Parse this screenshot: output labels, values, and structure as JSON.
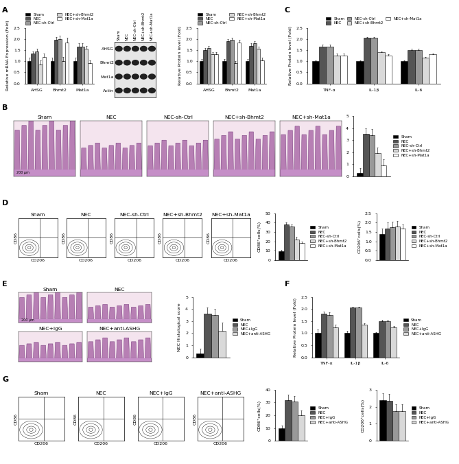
{
  "panel_letters": [
    "A",
    "B",
    "C",
    "D",
    "E",
    "F",
    "G"
  ],
  "chart_data": [
    {
      "type": "bar",
      "y_label": "Relative mRNA Expression (Fold)",
      "categories": [
        "AHSG",
        "Bhmt2",
        "Mat1a"
      ],
      "series": [
        {
          "name": "Sham",
          "color": "#000000",
          "values": [
            1.0,
            1.0,
            1.0
          ],
          "errors": [
            0.15,
            0.15,
            0.15
          ]
        },
        {
          "name": "NEC",
          "color": "#555555",
          "values": [
            1.35,
            1.95,
            1.65
          ],
          "errors": [
            0.1,
            0.15,
            0.15
          ]
        },
        {
          "name": "NEC-sh-Ctrl",
          "color": "#999999",
          "values": [
            1.45,
            2.0,
            1.65
          ],
          "errors": [
            0.1,
            0.15,
            0.15
          ]
        },
        {
          "name": "NEC+sh-Bhmt2",
          "color": "#d9d9d9",
          "values": [
            0.85,
            1.0,
            1.55
          ],
          "errors": [
            0.2,
            0.2,
            0.15
          ]
        },
        {
          "name": "NEC+sh-Mat1a",
          "color": "#ffffff",
          "values": [
            1.2,
            1.85,
            0.9
          ],
          "errors": [
            0.15,
            0.2,
            0.15
          ]
        }
      ],
      "ylim": [
        0,
        2.5
      ],
      "yticks": [
        {
          "value": 0,
          "label": "0.0"
        },
        0.5,
        {
          "value": 1,
          "label": "1.0"
        },
        1.5,
        {
          "value": 2,
          "label": "2.0"
        },
        2.5
      ],
      "legend": "above"
    },
    {
      "type": "bar",
      "y_label": "Relative Protein level (Fold)",
      "categories": [
        "AHSG",
        "Bhmt2",
        "Mat1a"
      ],
      "series": [
        {
          "name": "Sham",
          "color": "#000000",
          "values": [
            1.0,
            1.0,
            1.0
          ],
          "errors": [
            0.1,
            0.1,
            0.1
          ]
        },
        {
          "name": "NEC",
          "color": "#555555",
          "values": [
            1.5,
            1.9,
            1.7
          ],
          "errors": [
            0.1,
            0.1,
            0.1
          ]
        },
        {
          "name": "NEC-sh-Ctrl",
          "color": "#999999",
          "values": [
            1.6,
            1.95,
            1.8
          ],
          "errors": [
            0.1,
            0.1,
            0.1
          ]
        },
        {
          "name": "NEC+sh-Bhmt2",
          "color": "#d9d9d9",
          "values": [
            1.3,
            0.9,
            1.55
          ],
          "errors": [
            0.1,
            0.1,
            0.1
          ]
        },
        {
          "name": "NEC+sh-Mat1a",
          "color": "#ffffff",
          "values": [
            1.3,
            1.85,
            1.05
          ],
          "errors": [
            0.1,
            0.1,
            0.1
          ]
        }
      ],
      "ylim": [
        0,
        2.5
      ],
      "yticks": [
        {
          "value": 0,
          "label": "0.0"
        },
        0.5,
        {
          "value": 1,
          "label": "1.0"
        },
        1.5,
        {
          "value": 2,
          "label": "2.0"
        },
        2.5
      ],
      "legend": "above"
    },
    {
      "type": "bar",
      "y_label": "Relative Protein level (Fold)",
      "categories": [
        "TNF-α",
        "IL-1β",
        "IL-6"
      ],
      "series": [
        {
          "name": "Sham",
          "color": "#000000",
          "values": [
            1.0,
            1.0,
            1.0
          ],
          "errors": [
            0.05,
            0.05,
            0.05
          ]
        },
        {
          "name": "NEC",
          "color": "#555555",
          "values": [
            1.65,
            2.05,
            1.5
          ],
          "errors": [
            0.1,
            0.05,
            0.05
          ]
        },
        {
          "name": "NEC-sh-Ctrl",
          "color": "#999999",
          "values": [
            1.65,
            2.05,
            1.5
          ],
          "errors": [
            0.1,
            0.05,
            0.05
          ]
        },
        {
          "name": "NEC+sh-Bhmt2",
          "color": "#d9d9d9",
          "values": [
            1.25,
            1.4,
            1.15
          ],
          "errors": [
            0.1,
            0.05,
            0.05
          ]
        },
        {
          "name": "NEC+sh-Mat1a",
          "color": "#ffffff",
          "values": [
            1.25,
            1.25,
            1.3
          ],
          "errors": [
            0.1,
            0.05,
            0.05
          ]
        }
      ],
      "ylim": [
        0,
        2.5
      ],
      "yticks": [
        {
          "value": 0,
          "label": "0.0"
        },
        0.5,
        {
          "value": 1,
          "label": "1.0"
        },
        1.5,
        {
          "value": 2,
          "label": "2.0"
        },
        2.5
      ],
      "legend": "above"
    },
    {
      "type": "bar",
      "y_label": "NEC Histological score",
      "categories": [
        null
      ],
      "series": [
        {
          "name": "Sham",
          "color": "#000000",
          "values": [
            0.3
          ],
          "errors": [
            0.4
          ]
        },
        {
          "name": "NEC",
          "color": "#555555",
          "values": [
            3.5
          ],
          "errors": [
            0.5
          ]
        },
        {
          "name": "NEC-sh-Ctrl",
          "color": "#999999",
          "values": [
            3.4
          ],
          "errors": [
            0.5
          ]
        },
        {
          "name": "NEC+sh-Bhmt2",
          "color": "#d9d9d9",
          "values": [
            1.9
          ],
          "errors": [
            0.5
          ]
        },
        {
          "name": "NEC+sh-Mat1a",
          "color": "#ffffff",
          "values": [
            0.9
          ],
          "errors": [
            0.5
          ]
        }
      ],
      "ylim": [
        0,
        5
      ],
      "yticks": [
        0,
        1,
        2,
        3,
        4,
        5
      ],
      "legend": "right"
    },
    {
      "type": "bar",
      "y_label": "CD86⁺cells(%)",
      "categories": [
        null
      ],
      "series": [
        {
          "name": "Sham",
          "color": "#000000",
          "values": [
            9
          ],
          "errors": [
            2
          ]
        },
        {
          "name": "NEC",
          "color": "#555555",
          "values": [
            38
          ],
          "errors": [
            2
          ]
        },
        {
          "name": "NEC-sh-Ctrl",
          "color": "#999999",
          "values": [
            36
          ],
          "errors": [
            2
          ]
        },
        {
          "name": "NEC+sh-Bhmt2",
          "color": "#d9d9d9",
          "values": [
            22
          ],
          "errors": [
            3
          ]
        },
        {
          "name": "NEC+sh-Mat1a",
          "color": "#ffffff",
          "values": [
            18
          ],
          "errors": [
            2
          ]
        }
      ],
      "ylim": [
        0,
        50
      ],
      "yticks": [
        0,
        10,
        20,
        30,
        40,
        50
      ],
      "legend": "right"
    },
    {
      "type": "bar",
      "y_label": "CD206⁺cells(%)",
      "categories": [
        null
      ],
      "series": [
        {
          "name": "Sham",
          "color": "#000000",
          "values": [
            1.4
          ],
          "errors": [
            0.3
          ]
        },
        {
          "name": "NEC",
          "color": "#555555",
          "values": [
            1.7
          ],
          "errors": [
            0.3
          ]
        },
        {
          "name": "NEC-sh-Ctrl",
          "color": "#999999",
          "values": [
            1.75
          ],
          "errors": [
            0.3
          ]
        },
        {
          "name": "NEC+sh-Bhmt2",
          "color": "#d9d9d9",
          "values": [
            1.8
          ],
          "errors": [
            0.3
          ]
        },
        {
          "name": "NEC+sh-Mat1a",
          "color": "#ffffff",
          "values": [
            1.7
          ],
          "errors": [
            0.2
          ]
        }
      ],
      "ylim": [
        0,
        2.5
      ],
      "yticks": [
        {
          "value": 0,
          "label": "0.0"
        },
        0.5,
        {
          "value": 1,
          "label": "1.0"
        },
        1.5,
        {
          "value": 2,
          "label": "2.0"
        },
        2.5
      ],
      "legend": "right"
    },
    {
      "type": "bar",
      "y_label": "NEC Histological score",
      "categories": [
        null
      ],
      "series": [
        {
          "name": "Sham",
          "color": "#000000",
          "values": [
            0.3
          ],
          "errors": [
            0.4
          ]
        },
        {
          "name": "NEC",
          "color": "#555555",
          "values": [
            3.6
          ],
          "errors": [
            0.5
          ]
        },
        {
          "name": "NEC+IgG",
          "color": "#999999",
          "values": [
            3.5
          ],
          "errors": [
            0.5
          ]
        },
        {
          "name": "NEC+anti-ASHG",
          "color": "#d9d9d9",
          "values": [
            2.2
          ],
          "errors": [
            0.7
          ]
        }
      ],
      "ylim": [
        0,
        5
      ],
      "yticks": [
        0,
        1,
        2,
        3,
        4,
        5
      ],
      "legend": "right"
    },
    {
      "type": "bar",
      "y_label": "Relative Protein level (Fold)",
      "categories": [
        "TNF-α",
        "IL-1β",
        "IL-6"
      ],
      "series": [
        {
          "name": "Sham",
          "color": "#000000",
          "values": [
            1.0,
            1.0,
            1.0
          ],
          "errors": [
            0.15,
            0.1,
            0.05
          ]
        },
        {
          "name": "NEC",
          "color": "#555555",
          "values": [
            1.8,
            2.05,
            1.5
          ],
          "errors": [
            0.1,
            0.05,
            0.05
          ]
        },
        {
          "name": "NEC+IgG",
          "color": "#999999",
          "values": [
            1.75,
            2.05,
            1.5
          ],
          "errors": [
            0.1,
            0.05,
            0.05
          ]
        },
        {
          "name": "NEC+anti-ASHG",
          "color": "#d9d9d9",
          "values": [
            1.25,
            1.35,
            1.25
          ],
          "errors": [
            0.1,
            0.05,
            0.05
          ]
        }
      ],
      "ylim": [
        0,
        2.5
      ],
      "yticks": [
        {
          "value": 0,
          "label": "0.0"
        },
        0.5,
        {
          "value": 1,
          "label": "1.0"
        },
        1.5,
        {
          "value": 2,
          "label": "2.0"
        },
        2.5
      ],
      "legend": "right"
    },
    {
      "type": "bar",
      "y_label": "CD86⁺cells(%)",
      "categories": [
        null
      ],
      "series": [
        {
          "name": "Sham",
          "color": "#000000",
          "values": [
            10
          ],
          "errors": [
            2
          ]
        },
        {
          "name": "NEC",
          "color": "#555555",
          "values": [
            32
          ],
          "errors": [
            4
          ]
        },
        {
          "name": "NEC+IgG",
          "color": "#999999",
          "values": [
            31
          ],
          "errors": [
            4
          ]
        },
        {
          "name": "NEC+anti-ASHG",
          "color": "#d9d9d9",
          "values": [
            20
          ],
          "errors": [
            4
          ]
        }
      ],
      "ylim": [
        0,
        40
      ],
      "yticks": [
        0,
        10,
        20,
        30,
        40
      ],
      "legend": "right"
    },
    {
      "type": "bar",
      "y_label": "CD206⁺cells(%)",
      "categories": [
        null
      ],
      "series": [
        {
          "name": "Sham",
          "color": "#000000",
          "values": [
            2.4
          ],
          "errors": [
            0.4
          ]
        },
        {
          "name": "NEC",
          "color": "#555555",
          "values": [
            2.35
          ],
          "errors": [
            0.4
          ]
        },
        {
          "name": "NEC+IgG",
          "color": "#999999",
          "values": [
            1.75
          ],
          "errors": [
            0.4
          ]
        },
        {
          "name": "NEC+anti-ASHG",
          "color": "#d9d9d9",
          "values": [
            1.75
          ],
          "errors": [
            0.4
          ]
        }
      ],
      "ylim": [
        0,
        3
      ],
      "yticks": [
        0,
        1,
        2,
        3
      ],
      "legend": "right"
    }
  ],
  "blot": {
    "lanes": [
      "Sham",
      "NEC",
      "NEC-sh-Ctrl",
      "NEC+sh-Bhmt2",
      "NEC+sh-Mat1a"
    ],
    "rows": [
      "AHSG",
      "Bhmt2",
      "Mat1a",
      "Actin"
    ]
  },
  "histology_B": {
    "labels": [
      "Sham",
      "NEC",
      "NEC-sh-Ctrl",
      "NEC+sh-Bhmt2",
      "NEC+sh-Mat1a"
    ],
    "scale_bar": "200 μm"
  },
  "flow_D": {
    "labels": [
      "Sham",
      "NEC",
      "NEC-sh-Ctrl",
      "NEC+sh-Bhmt2",
      "NEC+sh-Mat1a"
    ],
    "x_label": "CD206",
    "y_label": "CD86"
  },
  "histology_E": {
    "labels": [
      "Sham",
      "NEC",
      "NEC+IgG",
      "NEC+anti-ASHG"
    ],
    "scale_bar": "200 μm"
  },
  "flow_G": {
    "labels": [
      "Sham",
      "NEC",
      "NEC+IgG",
      "NEC+anti-ASHG"
    ],
    "x_label": "CD206",
    "y_label": "CD86"
  }
}
